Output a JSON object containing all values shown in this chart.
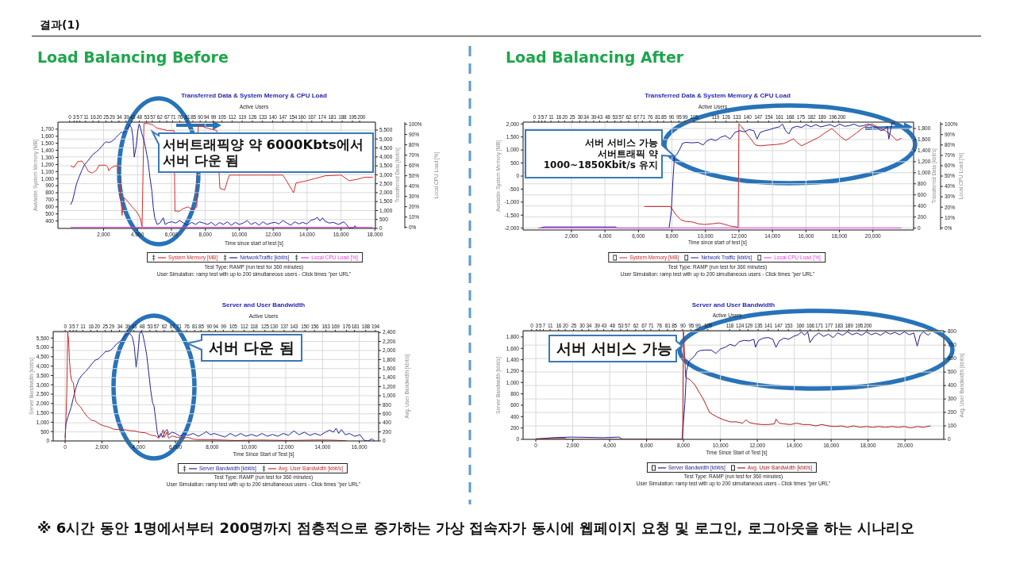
{
  "chart_data": [
    {
      "type": "line",
      "title": "Transferred Data & System Memory & CPU Load",
      "x2label": "Active Users",
      "xlabel": "Time since start of test [s]",
      "ylabel": "Available System Memory [MB]",
      "y2label": "Transferred Data [kbit/s]",
      "y3label": "Local CPU Load [%]",
      "xlim": [
        -690,
        18030
      ],
      "xticks": [
        {
          "value": 2000,
          "label": "2,000"
        },
        {
          "value": 4000,
          "label": "4,000"
        },
        {
          "value": 6000,
          "label": "6,000"
        },
        {
          "value": 8000,
          "label": "8,000"
        },
        {
          "value": 10000,
          "label": "10,000"
        },
        {
          "value": 12000,
          "label": "12,000"
        },
        {
          "value": 14000,
          "label": "14,000"
        },
        {
          "value": 16000,
          "label": "16,000"
        },
        {
          "value": 18000,
          "label": "18,000"
        }
      ],
      "x2lim": [
        -8.1,
        210.9
      ],
      "x2ticks": [
        0,
        3,
        5,
        7,
        11,
        16,
        20,
        25,
        29,
        34,
        39,
        43,
        48,
        53,
        57,
        62,
        67,
        71,
        76,
        81,
        85,
        90,
        94,
        99,
        105,
        112,
        119,
        126,
        133,
        140,
        147,
        154,
        160,
        167,
        174,
        181,
        188,
        195,
        200
      ],
      "ylim": [
        295,
        1800
      ],
      "yticks": [
        400,
        500,
        600,
        700,
        800,
        900,
        {
          "value": 1000,
          "label": "1,000"
        },
        {
          "value": 1100,
          "label": "1,100"
        },
        {
          "value": 1200,
          "label": "1,200"
        },
        {
          "value": 1300,
          "label": "1,300"
        },
        {
          "value": 1400,
          "label": "1,400"
        },
        {
          "value": 1500,
          "label": "1,500"
        },
        {
          "value": 1600,
          "label": "1,600"
        },
        {
          "value": 1700,
          "label": "1,700"
        }
      ],
      "y2lim": [
        0,
        5945
      ],
      "y2ticks": [
        0,
        500,
        {
          "value": 1000,
          "label": "1,000"
        },
        {
          "value": 1500,
          "label": "1,500"
        },
        {
          "value": 2000,
          "label": "2,000"
        },
        {
          "value": 2500,
          "label": "2,500"
        },
        {
          "value": 3000,
          "label": "3,000"
        },
        {
          "value": 3500,
          "label": "3,500"
        },
        {
          "value": 4000,
          "label": "4,000"
        },
        {
          "value": 4500,
          "label": "4,500"
        },
        {
          "value": 5000,
          "label": "5,000"
        },
        {
          "value": 5500,
          "label": "5,500"
        }
      ],
      "y3lim": [
        -1,
        102
      ],
      "y3ticks": [
        {
          "value": 0,
          "label": "0%"
        },
        {
          "value": 10,
          "label": "10%"
        },
        {
          "value": 20,
          "label": "20%"
        },
        {
          "value": 30,
          "label": "30%"
        },
        {
          "value": 40,
          "label": "40%"
        },
        {
          "value": 50,
          "label": "50%"
        },
        {
          "value": 60,
          "label": "60%"
        },
        {
          "value": 70,
          "label": "70%"
        },
        {
          "value": 80,
          "label": "80%"
        },
        {
          "value": 90,
          "label": "90%"
        },
        {
          "value": 100,
          "label": "100%"
        }
      ],
      "grid": true,
      "legend": "bottom",
      "series": [
        {
          "name": "System Memory [MB]",
          "color": "#d42b2b",
          "x": [
            60,
            250,
            480,
            720,
            900,
            1110,
            1340,
            1580,
            1730,
            2120,
            2250,
            2310,
            2430,
            2670,
            2900,
            3090,
            3210,
            3450,
            3680,
            3920,
            4150,
            4270,
            4380,
            4620,
            4930,
            5090,
            5790,
            6150,
            6210,
            6490,
            6650,
            6960,
            7270,
            7500,
            7580,
            8050,
            8360,
            8670,
            8860,
            9140,
            9300,
            9420,
            11330,
            12570,
            12730,
            12960,
            13200,
            13350,
            13590,
            13980,
            14450,
            15070,
            16010,
            16470,
            16940,
            17410,
            17880
          ],
          "values": [
            1180,
            1160,
            1240,
            1250,
            1190,
            1100,
            1080,
            1120,
            1190,
            1190,
            1160,
            1110,
            1150,
            1180,
            1180,
            480,
            730,
            670,
            600,
            540,
            450,
            320,
            1780,
            1780,
            1760,
            1720,
            1680,
            1680,
            540,
            540,
            570,
            600,
            560,
            600,
            1760,
            1720,
            1700,
            1680,
            860,
            840,
            970,
            1050,
            1050,
            1050,
            990,
            900,
            800,
            940,
            950,
            970,
            1000,
            1040,
            1050,
            970,
            990,
            1020,
            1020
          ]
        },
        {
          "name": "NetworkTraffic [kbit/s]",
          "color": "#1f1f9e",
          "axis": "y2",
          "x": [
            60,
            170,
            300,
            410,
            560,
            720,
            870,
            1030,
            1190,
            1370,
            1580,
            1730,
            1890,
            2040,
            2150,
            2280,
            2430,
            2590,
            2750,
            2900,
            3060,
            3140,
            3290,
            3450,
            3530,
            3650,
            3730,
            3810,
            3920,
            4020,
            4100,
            4180,
            4270,
            4380,
            4490,
            4620,
            4740,
            4850,
            4930,
            5020,
            5160,
            5320,
            5520,
            5630,
            5830,
            6020,
            6260,
            6490,
            6720,
            6960,
            7190,
            7430,
            7660,
            7890,
            8130,
            8360,
            8600,
            8830,
            9060,
            9300,
            9530,
            9770,
            10000,
            10230,
            10470,
            10700,
            10940,
            11170,
            11400,
            11640,
            11870,
            12110,
            12340,
            12570,
            12810,
            13040,
            13280,
            13510,
            13740,
            13980,
            14210,
            14450,
            14600,
            14760,
            14910,
            15070,
            15300,
            15540,
            15850,
            16160,
            16320,
            16470,
            16710,
            16820,
            16940
          ],
          "values": [
            1330,
            1550,
            2070,
            2510,
            2880,
            3250,
            3550,
            3730,
            3920,
            4140,
            4290,
            4410,
            4590,
            4760,
            4850,
            4810,
            4840,
            4950,
            5100,
            5250,
            5400,
            5320,
            5470,
            5620,
            5800,
            5620,
            5100,
            3990,
            4580,
            5470,
            5840,
            5620,
            5250,
            4950,
            4440,
            3770,
            2810,
            2070,
            1180,
            590,
            220,
            300,
            590,
            220,
            330,
            370,
            300,
            440,
            300,
            180,
            340,
            220,
            370,
            300,
            220,
            340,
            150,
            330,
            220,
            370,
            180,
            340,
            220,
            300,
            440,
            220,
            340,
            180,
            370,
            220,
            300,
            340,
            250,
            440,
            300,
            180,
            370,
            250,
            340,
            250,
            440,
            520,
            620,
            410,
            590,
            400,
            300,
            340,
            220,
            370,
            220,
            30,
            0,
            150,
            30
          ]
        },
        {
          "name": "Local CPU Load [%]",
          "color": "#e23be2",
          "axis": "y3",
          "x": [
            60,
            17880
          ],
          "values": [
            0,
            0
          ]
        }
      ],
      "annotations": [
        "결과(1)",
        "Load Balancing Before",
        "서버트래픽양 약 6000Kbts에서",
        "서버 다운 됨",
        "Test Type: RAMP (run test for 360 minutes)",
        "User Simulation: ramp test with up to 200 simultaneous users - Click times \"per URL\"",
        "※ 6시간 동안 1명에서부터 200명까지 점층적으로 증가하는 가상 접속자가 동시에 웹페이지 요청 및 로그인, 로그아웃을 하는 시나리오"
      ]
    },
    {
      "type": "line",
      "title": "Transferred Data & System Memory & CPU Load",
      "x2label": "Active Users",
      "xlabel": "Time since start of test [s]",
      "ylabel": "Available System Memory [MB]",
      "y2label": "Transferred Data [kbit/s]",
      "y3label": "Local CPU Load [%]",
      "xlim": [
        -890,
        22430
      ],
      "xticks": [
        {
          "value": 2000,
          "label": "2,000"
        },
        {
          "value": 4000,
          "label": "4,000"
        },
        {
          "value": 6000,
          "label": "6,000"
        },
        {
          "value": 8000,
          "label": "8,000"
        },
        {
          "value": 10000,
          "label": "10,000"
        },
        {
          "value": 12000,
          "label": "12,000"
        },
        {
          "value": 14000,
          "label": "14,000"
        },
        {
          "value": 16000,
          "label": "16,000"
        },
        {
          "value": 18000,
          "label": "18,000"
        },
        {
          "value": 20000,
          "label": "20,000"
        }
      ],
      "x2lim": [
        -7.3,
        249.2
      ],
      "x2ticks": [
        0,
        3,
        5,
        7,
        11,
        16,
        20,
        25,
        30,
        34,
        39,
        43,
        48,
        53,
        57,
        62,
        67,
        71,
        76,
        81,
        85,
        90,
        95,
        99,
        105,
        119,
        126,
        133,
        140,
        147,
        154,
        161,
        168,
        175,
        182,
        189,
        196,
        200
      ],
      "ylim": [
        -2070,
        2070
      ],
      "yticks": [
        {
          "value": -2000,
          "label": "-2,000"
        },
        {
          "value": -1500,
          "label": "-1,500"
        },
        {
          "value": -1000,
          "label": "-1,000"
        },
        -500,
        0,
        500,
        {
          "value": 1000,
          "label": "1,000"
        },
        {
          "value": 1500,
          "label": "1,500"
        },
        {
          "value": 2000,
          "label": "2,000"
        }
      ],
      "y2lim": [
        -35,
        1915
      ],
      "y2ticks": [
        0,
        200,
        400,
        600,
        800,
        {
          "value": 1000,
          "label": "1,000"
        },
        {
          "value": 1200,
          "label": "1,200"
        },
        {
          "value": 1400,
          "label": "1,400"
        },
        {
          "value": 1600,
          "label": "1,600"
        },
        {
          "value": 1800,
          "label": "1,800"
        }
      ],
      "y3lim": [
        -2,
        102
      ],
      "y3ticks": [
        {
          "value": 0,
          "label": "0%"
        },
        {
          "value": 10,
          "label": "10%"
        },
        {
          "value": 20,
          "label": "20%"
        },
        {
          "value": 30,
          "label": "30%"
        },
        {
          "value": 40,
          "label": "40%"
        },
        {
          "value": 50,
          "label": "50%"
        },
        {
          "value": 60,
          "label": "60%"
        },
        {
          "value": 70,
          "label": "70%"
        },
        {
          "value": 80,
          "label": "80%"
        },
        {
          "value": 90,
          "label": "90%"
        },
        {
          "value": 100,
          "label": "100%"
        }
      ],
      "grid": true,
      "legend": "bottom",
      "series": [
        {
          "name": "System Memory [MB]",
          "color": "#c8282a",
          "x": [
            6350,
            7910,
            8060,
            8250,
            8530,
            8820,
            9200,
            9570,
            9950,
            10430,
            10810,
            11190,
            11470,
            11950,
            12000,
            12130,
            12420,
            12700,
            12990,
            13270,
            13750,
            14220,
            14690,
            15070,
            15260,
            15450,
            15740,
            16020,
            16400,
            16780,
            17160,
            17540,
            17820,
            18110,
            18390,
            18680,
            19050,
            19430,
            19910,
            20290,
            20760,
            21140,
            21420,
            21710
          ],
          "values": [
            -1170,
            -1170,
            -1310,
            -1490,
            -1680,
            -1740,
            -1760,
            -1830,
            -1860,
            -1830,
            -1800,
            -1860,
            -1920,
            -1960,
            2000,
            1920,
            1670,
            1430,
            1190,
            1160,
            1190,
            1210,
            1250,
            1370,
            1430,
            1300,
            1160,
            1250,
            1370,
            1490,
            1670,
            1820,
            1670,
            1490,
            1370,
            1490,
            1670,
            1860,
            2000,
            1890,
            1730,
            1550,
            1370,
            1450
          ]
        },
        {
          "name": "Network Traffic [kbit/s]",
          "color": "#1f1f9e",
          "axis": "y2",
          "x": [
            100,
            380,
            4650,
            4700,
            7830,
            7960,
            8060,
            8150,
            8290,
            8440,
            8630,
            8820,
            9200,
            9570,
            9860,
            10050,
            10330,
            10620,
            10900,
            11190,
            11470,
            11760,
            12040,
            12320,
            12610,
            12890,
            13080,
            13270,
            13560,
            13840,
            14130,
            14410,
            14600,
            14790,
            14980,
            15170,
            15450,
            15740,
            16020,
            16310,
            16590,
            16880,
            17160,
            17450,
            17730,
            18010,
            18300,
            18580,
            18870,
            19150,
            19430,
            19720,
            20000,
            20230,
            20480,
            20670,
            20860,
            20950,
            21140,
            21330
          ],
          "values": [
            0,
            20,
            20,
            0,
            0,
            300,
            870,
            1300,
            1330,
            1410,
            1530,
            1550,
            1540,
            1550,
            1500,
            1570,
            1610,
            1580,
            1640,
            1670,
            1610,
            1730,
            1760,
            1740,
            1780,
            1760,
            1610,
            1730,
            1760,
            1780,
            1810,
            1830,
            1880,
            1760,
            1700,
            1810,
            1840,
            1820,
            1870,
            1830,
            1870,
            1830,
            1850,
            1870,
            1830,
            1880,
            1840,
            1850,
            1880,
            1840,
            1850,
            1880,
            1840,
            1820,
            1760,
            1780,
            1840,
            1610,
            1900,
            1900
          ]
        },
        {
          "name": "Local CPU Load [%]",
          "color": "#e23be2",
          "axis": "y3",
          "x": [
            0,
            21700
          ],
          "values": [
            0,
            0
          ]
        }
      ],
      "annotations": [
        "Load Balancing After",
        "서버 서비스 가능",
        {
          "text": "서버트래픽 약 1000~1850Kbit/s 유지",
          "x": 8150,
          "y": 760
        },
        "Test Type: RAMP (run test for 360 minutes)",
        "User Simulation: ramp test with up to 200 simultaneous users - Click times \"per URL\""
      ]
    },
    {
      "type": "line",
      "title": "Server and User Bandwidth",
      "x2label": "Active Users",
      "xlabel": "Time Since Start of Test [s]",
      "ylabel": "Server Bandwidth [kbit/s]",
      "y2label": "Avg. User Bandwidth [kbit/s]",
      "xlim": [
        -650,
        17050
      ],
      "xticks": [
        0,
        {
          "value": 2000,
          "label": "2,000"
        },
        {
          "value": 4000,
          "label": "4,000"
        },
        {
          "value": 6000,
          "label": "6,000"
        },
        {
          "value": 8000,
          "label": "8,000"
        },
        {
          "value": 10000,
          "label": "10,000"
        },
        {
          "value": 12000,
          "label": "12,000"
        },
        {
          "value": 14000,
          "label": "14,000"
        },
        {
          "value": 16000,
          "label": "16,000"
        }
      ],
      "x2lim": [
        -7.5,
        196.1
      ],
      "x2ticks": [
        0,
        3,
        5,
        7,
        11,
        16,
        20,
        25,
        29,
        34,
        39,
        43,
        48,
        53,
        57,
        62,
        67,
        71,
        76,
        81,
        85,
        90,
        94,
        99,
        105,
        112,
        118,
        125,
        130,
        137,
        143,
        150,
        156,
        163,
        169,
        176,
        181,
        188,
        194
      ],
      "ylim": [
        0,
        5850
      ],
      "yticks": [
        0,
        500,
        {
          "value": 1000,
          "label": "1,000"
        },
        {
          "value": 1500,
          "label": "1,500"
        },
        {
          "value": 2000,
          "label": "2,000"
        },
        {
          "value": 2500,
          "label": "2,500"
        },
        {
          "value": 3000,
          "label": "3,000"
        },
        {
          "value": 3500,
          "label": "3,500"
        },
        {
          "value": 4000,
          "label": "4,000"
        },
        {
          "value": 4500,
          "label": "4,500"
        },
        {
          "value": 5000,
          "label": "5,000"
        },
        {
          "value": 5500,
          "label": "5,500"
        }
      ],
      "y2lim": [
        0,
        2420
      ],
      "y2ticks": [
        0,
        200,
        400,
        600,
        800,
        {
          "value": 1000,
          "label": "1,000"
        },
        {
          "value": 1200,
          "label": "1,200"
        },
        {
          "value": 1400,
          "label": "1,400"
        },
        {
          "value": 1600,
          "label": "1,600"
        },
        {
          "value": 1800,
          "label": "1,800"
        },
        {
          "value": 2000,
          "label": "2,000"
        },
        {
          "value": 2200,
          "label": "2,200"
        },
        {
          "value": 2400,
          "label": "2,400"
        }
      ],
      "grid": true,
      "legend": "bottom",
      "series": [
        {
          "name": "Server Bandwidth [kbit/s]",
          "color": "#23239c",
          "x": [
            0,
            40,
            120,
            190,
            330,
            480,
            620,
            760,
            910,
            1120,
            1270,
            1480,
            1630,
            1770,
            1920,
            2060,
            2200,
            2350,
            2490,
            2640,
            2780,
            2930,
            3070,
            3210,
            3360,
            3500,
            3650,
            3760,
            3860,
            3960,
            4050,
            4120,
            4220,
            4340,
            4440,
            4540,
            4650,
            4760,
            4830,
            4940,
            5010,
            5090,
            5200,
            5300,
            5450,
            5550,
            5630,
            5810,
            6020,
            6240,
            6460,
            6670,
            6960,
            7250,
            7540,
            7680,
            7900,
            8110,
            8400,
            8690,
            8980,
            9270,
            9550,
            9840,
            10130,
            10420,
            10710,
            11000,
            11280,
            11570,
            11860,
            12150,
            12440,
            12720,
            13010,
            13300,
            13590,
            13880,
            14160,
            14380,
            14600,
            14740,
            14880,
            15030,
            15240,
            15460,
            15750,
            16040,
            16250,
            16470,
            16690,
            16830
          ],
          "values": [
            180,
            890,
            1180,
            1390,
            1810,
            2450,
            2950,
            3300,
            3510,
            3720,
            3890,
            4150,
            4320,
            4360,
            4500,
            4640,
            4790,
            4790,
            4860,
            5000,
            5170,
            5280,
            5390,
            5570,
            5710,
            5780,
            5570,
            5070,
            3940,
            4720,
            5710,
            5850,
            5710,
            5140,
            4570,
            3720,
            2730,
            2020,
            1880,
            1030,
            470,
            180,
            400,
            180,
            540,
            610,
            330,
            470,
            400,
            250,
            400,
            300,
            400,
            250,
            400,
            500,
            330,
            400,
            300,
            210,
            400,
            250,
            400,
            250,
            350,
            250,
            400,
            250,
            350,
            250,
            400,
            300,
            540,
            330,
            470,
            300,
            400,
            300,
            470,
            580,
            470,
            680,
            400,
            610,
            330,
            400,
            250,
            330,
            40,
            0,
            110,
            0
          ]
        },
        {
          "name": "Avg. User Bandwidth [kbit/s]",
          "color": "#c42a2a",
          "axis": "y2",
          "x": [
            0,
            40,
            90,
            140,
            190,
            230,
            290,
            360,
            450,
            520,
            590,
            690,
            840,
            980,
            1200,
            1410,
            1630,
            1840,
            2060,
            2350,
            2640,
            2930,
            3210,
            3500,
            3790,
            4080,
            4370,
            4650,
            4940,
            5090,
            5230,
            5330,
            5400,
            5520,
            5630,
            5810,
            6100,
            6380,
            6670,
            6960,
            7250,
            7820,
            8540,
            9270,
            10710,
            12150,
            13590,
            14310,
            15030,
            15320
          ],
          "values": [
            0,
            430,
            1070,
            2400,
            2240,
            1830,
            1480,
            1330,
            1280,
            1010,
            870,
            810,
            750,
            660,
            540,
            460,
            440,
            380,
            340,
            310,
            260,
            250,
            250,
            230,
            220,
            190,
            180,
            130,
            110,
            60,
            130,
            250,
            80,
            190,
            60,
            110,
            80,
            60,
            80,
            40,
            30,
            30,
            20,
            10,
            20,
            10,
            20,
            20,
            10,
            0
          ]
        }
      ],
      "annotations": [
        "서버 다운 됨",
        "Test Type: RAMP (run test for 360 minutes)",
        "User Simulation: ramp test with up to 200 simultaneous users - Click times \"per URL\""
      ]
    },
    {
      "type": "line",
      "title": "Server and User Bandwidth",
      "x2label": "Active Users",
      "xlabel": "Time Since Start of Test [s]",
      "ylabel": "Server Bandwidth [kbit/s]",
      "y2label": "Avg. User Bandwidth [kbit/s]",
      "xlim": [
        -690,
        22100
      ],
      "xticks": [
        0,
        {
          "value": 2000,
          "label": "2,000"
        },
        {
          "value": 4000,
          "label": "4,000"
        },
        {
          "value": 6000,
          "label": "6,000"
        },
        {
          "value": 8000,
          "label": "8,000"
        },
        {
          "value": 10000,
          "label": "10,000"
        },
        {
          "value": 12000,
          "label": "12,000"
        },
        {
          "value": 14000,
          "label": "14,000"
        },
        {
          "value": 16000,
          "label": "16,000"
        },
        {
          "value": 18000,
          "label": "18,000"
        },
        {
          "value": 20000,
          "label": "20,000"
        }
      ],
      "x2lim": [
        -5.1,
        245.6
      ],
      "x2ticks": [
        0,
        3,
        5,
        7,
        11,
        16,
        20,
        25,
        30,
        34,
        39,
        43,
        48,
        53,
        57,
        62,
        67,
        71,
        76,
        81,
        85,
        90,
        95,
        99,
        105,
        118,
        124,
        129,
        135,
        141,
        147,
        153,
        160,
        166,
        171,
        177,
        183,
        189,
        195,
        200
      ],
      "ylim": [
        0,
        1910
      ],
      "yticks": [
        0,
        200,
        400,
        600,
        800,
        {
          "value": 1000,
          "label": "1,000"
        },
        {
          "value": 1200,
          "label": "1,200"
        },
        {
          "value": 1400,
          "label": "1,400"
        },
        {
          "value": 1600,
          "label": "1,600"
        },
        {
          "value": 1800,
          "label": "1,800"
        }
      ],
      "y2lim": [
        0,
        807
      ],
      "y2ticks": [
        0,
        100,
        200,
        300,
        400,
        500,
        600,
        700,
        800
      ],
      "grid": true,
      "legend": "bottom",
      "series": [
        {
          "name": "Server Bandwidth [kbit/s]",
          "color": "#1c1c8c",
          "x": [
            0,
            220,
            910,
            1940,
            3660,
            4520,
            4690,
            7920,
            7980,
            8070,
            8160,
            8290,
            8460,
            8640,
            8720,
            8890,
            9150,
            9500,
            9750,
            10010,
            10270,
            10520,
            10780,
            11040,
            11300,
            11560,
            11810,
            11900,
            12070,
            12330,
            12590,
            12840,
            13010,
            13190,
            13440,
            13700,
            13960,
            14220,
            14390,
            14560,
            14730,
            14850,
            15080,
            15330,
            15590,
            15850,
            16110,
            16360,
            16620,
            16880,
            17140,
            17390,
            17650,
            17910,
            18170,
            18420,
            18680,
            18940,
            19200,
            19450,
            19710,
            19970,
            20230,
            20480,
            20660,
            20830,
            21000,
            21260,
            21380
          ],
          "values": [
            0,
            10,
            30,
            40,
            30,
            40,
            0,
            0,
            230,
            620,
            1200,
            1370,
            1420,
            1480,
            1530,
            1560,
            1570,
            1570,
            1510,
            1590,
            1620,
            1670,
            1640,
            1720,
            1740,
            1730,
            1760,
            1620,
            1740,
            1780,
            1790,
            1760,
            1620,
            1730,
            1780,
            1760,
            1810,
            1840,
            1890,
            1830,
            1890,
            1700,
            1810,
            1870,
            1810,
            1850,
            1790,
            1870,
            1830,
            1890,
            1840,
            1870,
            1830,
            1890,
            1840,
            1870,
            1830,
            1890,
            1850,
            1880,
            1840,
            1890,
            1840,
            1870,
            1640,
            1840,
            1890,
            1830,
            1870
          ]
        },
        {
          "name": "Avg. User Bandwidth [kbit/s]",
          "color": "#a81e1e",
          "axis": "y2",
          "x": [
            0,
            220,
            1600,
            1680,
            7950,
            8000,
            8120,
            8380,
            8640,
            8890,
            9070,
            9240,
            9410,
            9580,
            9840,
            10180,
            10530,
            10870,
            11210,
            11380,
            11560,
            11900,
            12240,
            12590,
            12930,
            13010,
            13190,
            13440,
            13790,
            14130,
            14470,
            14820,
            15160,
            15500,
            15850,
            16190,
            16530,
            16880,
            17220,
            17560,
            17910,
            18250,
            18590,
            18940,
            19280,
            19630,
            19970,
            20310,
            20660,
            21000,
            21380
          ],
          "values": [
            5,
            5,
            7,
            0,
            0,
            800,
            460,
            440,
            400,
            340,
            300,
            250,
            200,
            185,
            165,
            145,
            130,
            130,
            120,
            145,
            125,
            115,
            110,
            110,
            115,
            150,
            120,
            115,
            110,
            120,
            110,
            110,
            100,
            110,
            100,
            95,
            100,
            90,
            100,
            90,
            95,
            90,
            95,
            90,
            95,
            90,
            95,
            85,
            95,
            90,
            100
          ]
        }
      ],
      "annotations": [
        "서버 서비스 가능",
        "Test Type: RAMP (run test for 360 minutes)",
        "User Simulation: ramp test with up to 200 simultaneous users - Click times \"per URL\""
      ]
    }
  ]
}
